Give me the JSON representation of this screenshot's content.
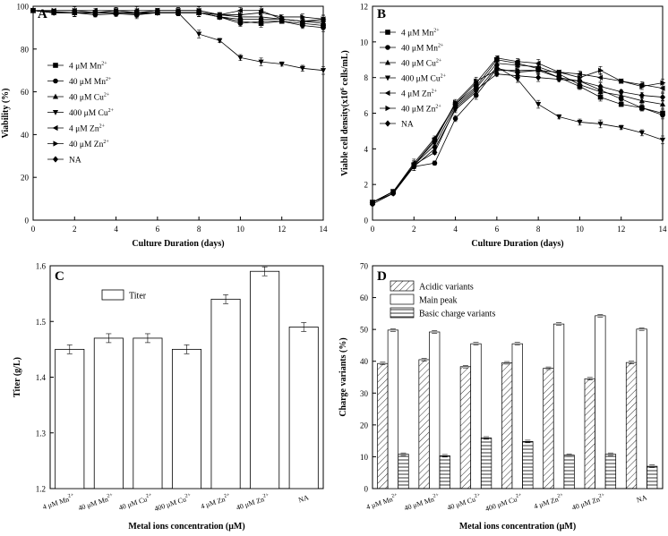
{
  "chart_data": [
    {
      "panel": "A",
      "type": "line",
      "xlabel": "Culture Duration (days)",
      "ylabel": "Viability (%)",
      "xlim": [
        0,
        14
      ],
      "ylim": [
        0,
        100
      ],
      "xticks": [
        0,
        2,
        4,
        6,
        8,
        10,
        12,
        14
      ],
      "yticks": [
        0,
        20,
        40,
        60,
        80,
        100
      ],
      "legend_position": "left-middle",
      "x": [
        0,
        1,
        2,
        3,
        4,
        5,
        6,
        7,
        8,
        9,
        10,
        11,
        12,
        13,
        14
      ],
      "series": [
        {
          "name": "4 μM Mn",
          "ion": "2+",
          "marker": "square",
          "values": [
            98,
            97.5,
            97,
            97,
            97,
            96.5,
            97,
            97,
            97,
            95,
            93,
            92,
            93,
            92,
            91
          ]
        },
        {
          "name": "40 μM Mn",
          "ion": "2+",
          "marker": "circle",
          "values": [
            98,
            97,
            97,
            96,
            96.5,
            96,
            97,
            97,
            97,
            95,
            92,
            93,
            93,
            91,
            90
          ]
        },
        {
          "name": "40 μM Cu",
          "ion": "2+",
          "marker": "triangle-up",
          "values": [
            98,
            97,
            97,
            97,
            97,
            97,
            97,
            97,
            97,
            96,
            95,
            95,
            94,
            93,
            92
          ]
        },
        {
          "name": "400 μM Cu",
          "ion": "2+",
          "marker": "triangle-down",
          "values": [
            98,
            97,
            97,
            97,
            97,
            97,
            97,
            97,
            87,
            84,
            76,
            74,
            73,
            71,
            70
          ]
        },
        {
          "name": "4 μM Zn",
          "ion": "2+",
          "marker": "triangle-left",
          "values": [
            98,
            98,
            98,
            98,
            98,
            98,
            98,
            98,
            98,
            96,
            98,
            98,
            94,
            93,
            94
          ]
        },
        {
          "name": "40 μM Zn",
          "ion": "2+",
          "marker": "triangle-right",
          "values": [
            98,
            98,
            98,
            97,
            98,
            97,
            98,
            98,
            98,
            96,
            96,
            97,
            95,
            95,
            94
          ]
        },
        {
          "name": "NA",
          "ion": "",
          "marker": "diamond",
          "values": [
            98,
            97,
            97,
            97,
            97,
            97,
            97,
            97,
            97,
            95,
            94,
            94,
            94,
            93,
            93
          ]
        }
      ]
    },
    {
      "panel": "B",
      "type": "line",
      "xlabel": "Culture Duration (days)",
      "ylabel_prefix": "Viable cell density(x10",
      "ylabel_exp": "6",
      "ylabel_suffix": " cells/mL)",
      "xlim": [
        0,
        14
      ],
      "ylim": [
        0,
        12
      ],
      "xticks": [
        0,
        2,
        4,
        6,
        8,
        10,
        12,
        14
      ],
      "yticks": [
        0,
        2,
        4,
        6,
        8,
        10,
        12
      ],
      "legend_position": "top-left",
      "x": [
        0,
        1,
        2,
        3,
        4,
        5,
        6,
        7,
        8,
        9,
        10,
        11,
        12,
        13,
        14
      ],
      "series": [
        {
          "name": "4 μM Mn",
          "ion": "2+",
          "marker": "square",
          "values": [
            1.0,
            1.6,
            3.1,
            4.5,
            6.5,
            7.5,
            9.0,
            8.8,
            8.5,
            8.0,
            7.5,
            6.9,
            6.5,
            6.3,
            6.0
          ]
        },
        {
          "name": "40 μM Mn",
          "ion": "2+",
          "marker": "circle",
          "values": [
            0.9,
            1.5,
            3.0,
            3.2,
            5.7,
            7.0,
            8.5,
            8.3,
            8.4,
            8.0,
            7.8,
            7.3,
            6.8,
            6.3,
            5.9
          ]
        },
        {
          "name": "40 μM Cu",
          "ion": "2+",
          "marker": "triangle-up",
          "values": [
            1.0,
            1.6,
            3.1,
            4.2,
            6.4,
            7.4,
            8.8,
            8.7,
            8.6,
            8.2,
            7.6,
            7.2,
            7.0,
            6.7,
            6.5
          ]
        },
        {
          "name": "400 μM Cu",
          "ion": "2+",
          "marker": "triangle-down",
          "values": [
            1.0,
            1.6,
            3.0,
            4.0,
            6.2,
            7.2,
            8.6,
            7.9,
            6.5,
            5.8,
            5.5,
            5.4,
            5.2,
            4.9,
            4.5
          ]
        },
        {
          "name": "4 μM Zn",
          "ion": "2+",
          "marker": "triangle-left",
          "values": [
            1.0,
            1.6,
            3.2,
            4.6,
            6.5,
            7.7,
            9.1,
            8.9,
            8.8,
            8.3,
            8.2,
            8.0,
            7.8,
            7.6,
            7.4
          ]
        },
        {
          "name": "40 μM Zn",
          "ion": "2+",
          "marker": "triangle-right",
          "values": [
            1.0,
            1.6,
            3.1,
            4.4,
            6.6,
            7.8,
            8.4,
            8.4,
            8.4,
            8.3,
            8.0,
            8.4,
            7.8,
            7.5,
            7.7
          ]
        },
        {
          "name": "NA",
          "ion": "",
          "marker": "diamond",
          "values": [
            1.0,
            1.5,
            3.1,
            3.8,
            6.3,
            7.3,
            8.2,
            8.1,
            8.0,
            7.9,
            7.8,
            7.5,
            7.2,
            7.0,
            6.9
          ]
        }
      ]
    },
    {
      "panel": "C",
      "type": "bar",
      "xlabel": "Metal ions concentration (μM)",
      "ylabel": "Titer (g/L)",
      "ylim": [
        1.2,
        1.6
      ],
      "yticks": [
        "1.2",
        "1.3",
        "1.4",
        "1.5",
        "1.6"
      ],
      "legend_position": "top-left",
      "categories": [
        {
          "name": "4 μM Mn",
          "ion": "2+"
        },
        {
          "name": "40 μM Mn",
          "ion": "2+"
        },
        {
          "name": "40 μM Cu",
          "ion": "2+"
        },
        {
          "name": "400 μM Cu",
          "ion": "2+"
        },
        {
          "name": "4 μM Zn",
          "ion": "2+"
        },
        {
          "name": "40 μM Zn",
          "ion": "2+"
        },
        {
          "name": "NA",
          "ion": ""
        }
      ],
      "series": [
        {
          "name": "Titer",
          "values": [
            1.45,
            1.47,
            1.47,
            1.45,
            1.54,
            1.59,
            1.49
          ]
        }
      ]
    },
    {
      "panel": "D",
      "type": "bar",
      "xlabel": "Metal ions concentration (μM)",
      "ylabel": "Charge variants (%)",
      "ylim": [
        0,
        70
      ],
      "yticks": [
        0,
        10,
        20,
        30,
        40,
        50,
        60,
        70
      ],
      "legend_position": "top-left",
      "categories": [
        {
          "name": "4 μM Mn",
          "ion": "2+"
        },
        {
          "name": "40 μM Mn",
          "ion": "2+"
        },
        {
          "name": "40 μM Cu",
          "ion": "2+"
        },
        {
          "name": "400 μM Cu",
          "ion": "2+"
        },
        {
          "name": "4 μM Zn",
          "ion": "2+"
        },
        {
          "name": "40 μM Zn",
          "ion": "2+"
        },
        {
          "name": "NA",
          "ion": ""
        }
      ],
      "series": [
        {
          "name": "Acidic variants",
          "pattern": "diagonal",
          "values": [
            39.3,
            40.5,
            38.3,
            39.5,
            37.8,
            34.5,
            39.6
          ]
        },
        {
          "name": "Main peak",
          "pattern": "none",
          "values": [
            49.8,
            49.2,
            45.5,
            45.5,
            51.7,
            54.3,
            50.1
          ]
        },
        {
          "name": "Basic charge variants",
          "pattern": "horizontal",
          "values": [
            10.8,
            10.3,
            15.9,
            14.8,
            10.5,
            10.8,
            7.0
          ]
        }
      ]
    }
  ]
}
